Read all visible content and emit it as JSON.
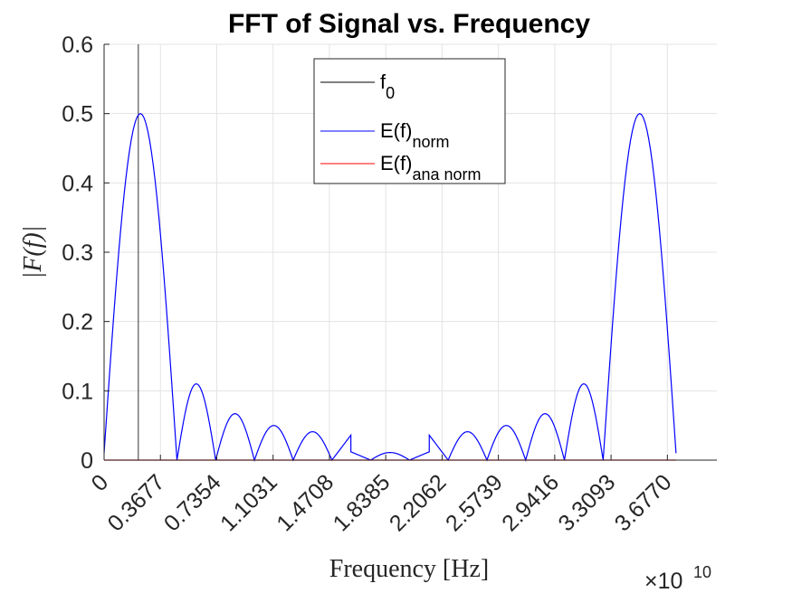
{
  "chart_data": {
    "type": "line",
    "title": "FFT of Signal vs. Frequency",
    "xlabel": "Frequency [Hz]",
    "ylabel": "|F(f)|",
    "x_exponent_label": "×10",
    "x_exponent_power": "10",
    "xlim": [
      0,
      4.0
    ],
    "ylim": [
      0,
      0.6
    ],
    "grid": true,
    "legend_position": "top-center",
    "x_ticks": [
      0,
      0.3677,
      0.7354,
      1.1031,
      1.4708,
      1.8385,
      2.2062,
      2.5739,
      2.9416,
      3.3093,
      3.677
    ],
    "x_tick_labels": [
      "0",
      "0.3677",
      "0.7354",
      "1.1031",
      "1.4708",
      "1.8385",
      "2.2062",
      "2.5739",
      "2.9416",
      "3.3093",
      "3.6770"
    ],
    "y_ticks": [
      0,
      0.1,
      0.2,
      0.3,
      0.4,
      0.5,
      0.6
    ],
    "y_tick_labels": [
      "0",
      "0.1",
      "0.2",
      "0.3",
      "0.4",
      "0.5",
      "0.6"
    ],
    "series": [
      {
        "name": "f_0",
        "legend_main": "f",
        "legend_sub": "0",
        "color": "#000000",
        "kind": "vline",
        "x": 0.2237
      },
      {
        "name": "E(f)_norm",
        "legend_main": "E(f)",
        "legend_sub": "norm",
        "color": "#0000ff",
        "kind": "sinc-lobes",
        "lobes": [
          {
            "x0": 0.0,
            "x1": 0.4757,
            "peak": 0.5,
            "start": 0.01,
            "end": 0.0
          },
          {
            "x0": 0.4757,
            "x1": 0.7283,
            "peak": 0.11,
            "start": 0.0,
            "end": 0.0
          },
          {
            "x0": 0.7283,
            "x1": 0.9813,
            "peak": 0.067,
            "start": 0.0,
            "end": 0.0
          },
          {
            "x0": 0.9813,
            "x1": 1.2343,
            "peak": 0.05,
            "start": 0.0,
            "end": 0.0
          },
          {
            "x0": 1.2343,
            "x1": 1.4873,
            "peak": 0.041,
            "start": 0.0,
            "end": 0.0
          },
          {
            "x0": 1.4873,
            "x1": 1.6108,
            "peak": 0.036,
            "start": 0.0,
            "end": 0.036
          },
          {
            "x0": 1.6108,
            "x1": 1.7402,
            "peak": 0.0085,
            "start": 0.012,
            "end": 0.0
          },
          {
            "x0": 1.7402,
            "x1": 1.9932,
            "peak": 0.011,
            "start": 0.0,
            "end": 0.0
          },
          {
            "x0": 1.9932,
            "x1": 2.1226,
            "peak": 0.0085,
            "start": 0.0,
            "end": 0.012
          },
          {
            "x0": 2.1226,
            "x1": 2.2461,
            "peak": 0.036,
            "start": 0.036,
            "end": 0.0
          },
          {
            "x0": 2.2461,
            "x1": 2.4991,
            "peak": 0.041,
            "start": 0.0,
            "end": 0.0
          },
          {
            "x0": 2.4991,
            "x1": 2.7521,
            "peak": 0.05,
            "start": 0.0,
            "end": 0.0
          },
          {
            "x0": 2.7521,
            "x1": 3.0051,
            "peak": 0.067,
            "start": 0.0,
            "end": 0.0
          },
          {
            "x0": 3.0051,
            "x1": 3.2577,
            "peak": 0.11,
            "start": 0.0,
            "end": 0.0
          },
          {
            "x0": 3.2577,
            "x1": 3.7334,
            "peak": 0.5,
            "start": 0.0,
            "end": 0.01
          }
        ]
      },
      {
        "name": "E(f)_ana norm",
        "legend_main": "E(f)",
        "legend_sub": "ana norm",
        "color": "#ff0000",
        "kind": "flat",
        "x": [
          0,
          3.7334
        ],
        "y": [
          0,
          0
        ]
      }
    ]
  }
}
